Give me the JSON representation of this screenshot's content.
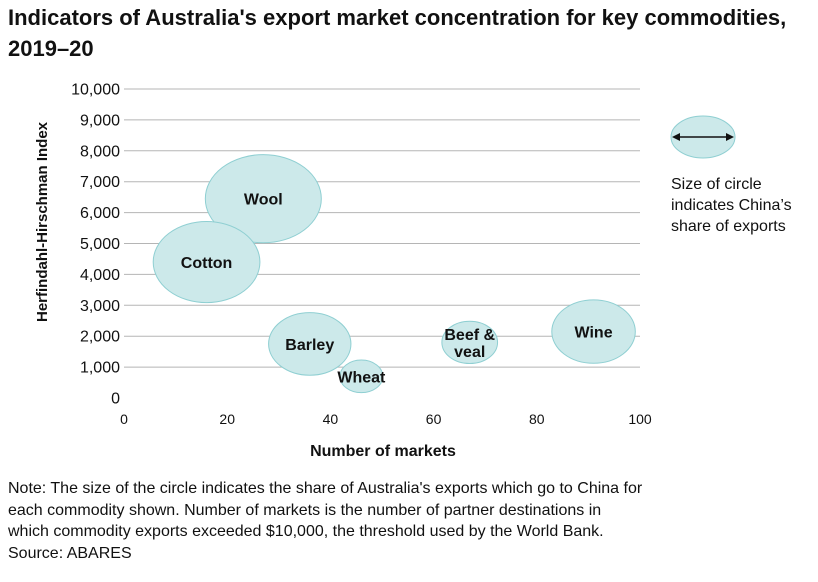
{
  "title": "Indicators of Australia's export market concentration for key commodities, 2019–20",
  "chart_data": {
    "type": "scatter",
    "subtype": "bubble",
    "xlabel": "Number of markets",
    "ylabel": "Herfindahl-Hirschman Index",
    "xlim": [
      0,
      100
    ],
    "ylim": [
      0,
      10000
    ],
    "xticks": [
      {
        "value": 0,
        "label": "0"
      },
      {
        "value": 20,
        "label": "20"
      },
      {
        "value": 40,
        "label": "40"
      },
      {
        "value": 60,
        "label": "60"
      },
      {
        "value": 80,
        "label": "80"
      },
      {
        "value": 100,
        "label": "100"
      }
    ],
    "yticks": [
      {
        "value": 0,
        "label": "0"
      },
      {
        "value": 1000,
        "label": "1,000"
      },
      {
        "value": 2000,
        "label": "2,000"
      },
      {
        "value": 3000,
        "label": "3,000"
      },
      {
        "value": 4000,
        "label": "4,000"
      },
      {
        "value": 5000,
        "label": "5,000"
      },
      {
        "value": 6000,
        "label": "6,000"
      },
      {
        "value": 7000,
        "label": "7,000"
      },
      {
        "value": 8000,
        "label": "8,000"
      },
      {
        "value": 9000,
        "label": "9,000"
      },
      {
        "value": 10000,
        "label": "10,000"
      }
    ],
    "grid": "horizontal",
    "points": [
      {
        "label": [
          "Wool"
        ],
        "x": 27,
        "y": 6450,
        "size": 1.0
      },
      {
        "label": [
          "Cotton"
        ],
        "x": 16,
        "y": 4400,
        "size": 0.92
      },
      {
        "label": [
          "Barley"
        ],
        "x": 36,
        "y": 1750,
        "size": 0.71
      },
      {
        "label": [
          "Wheat"
        ],
        "x": 46,
        "y": 700,
        "size": 0.37
      },
      {
        "label": [
          "Beef &",
          "veal"
        ],
        "x": 67,
        "y": 1800,
        "size": 0.48
      },
      {
        "label": [
          "Wine"
        ],
        "x": 91,
        "y": 2150,
        "size": 0.72
      }
    ],
    "legend": {
      "position": "right",
      "text": [
        "Size of circle",
        "indicates China’s",
        "share of exports"
      ]
    }
  },
  "note": [
    "Note: The size of the circle indicates the share of Australia's exports which go to China for",
    "each commodity shown. Number of markets is the number of partner destinations in",
    "which commodity exports exceeded $10,000, the threshold used by the World Bank.",
    "Source: ABARES"
  ],
  "colors": {
    "bubble_fill": "#cce9ea",
    "bubble_stroke": "#8fcfd2",
    "grid": "#b5b5b5",
    "text": "#111111"
  }
}
